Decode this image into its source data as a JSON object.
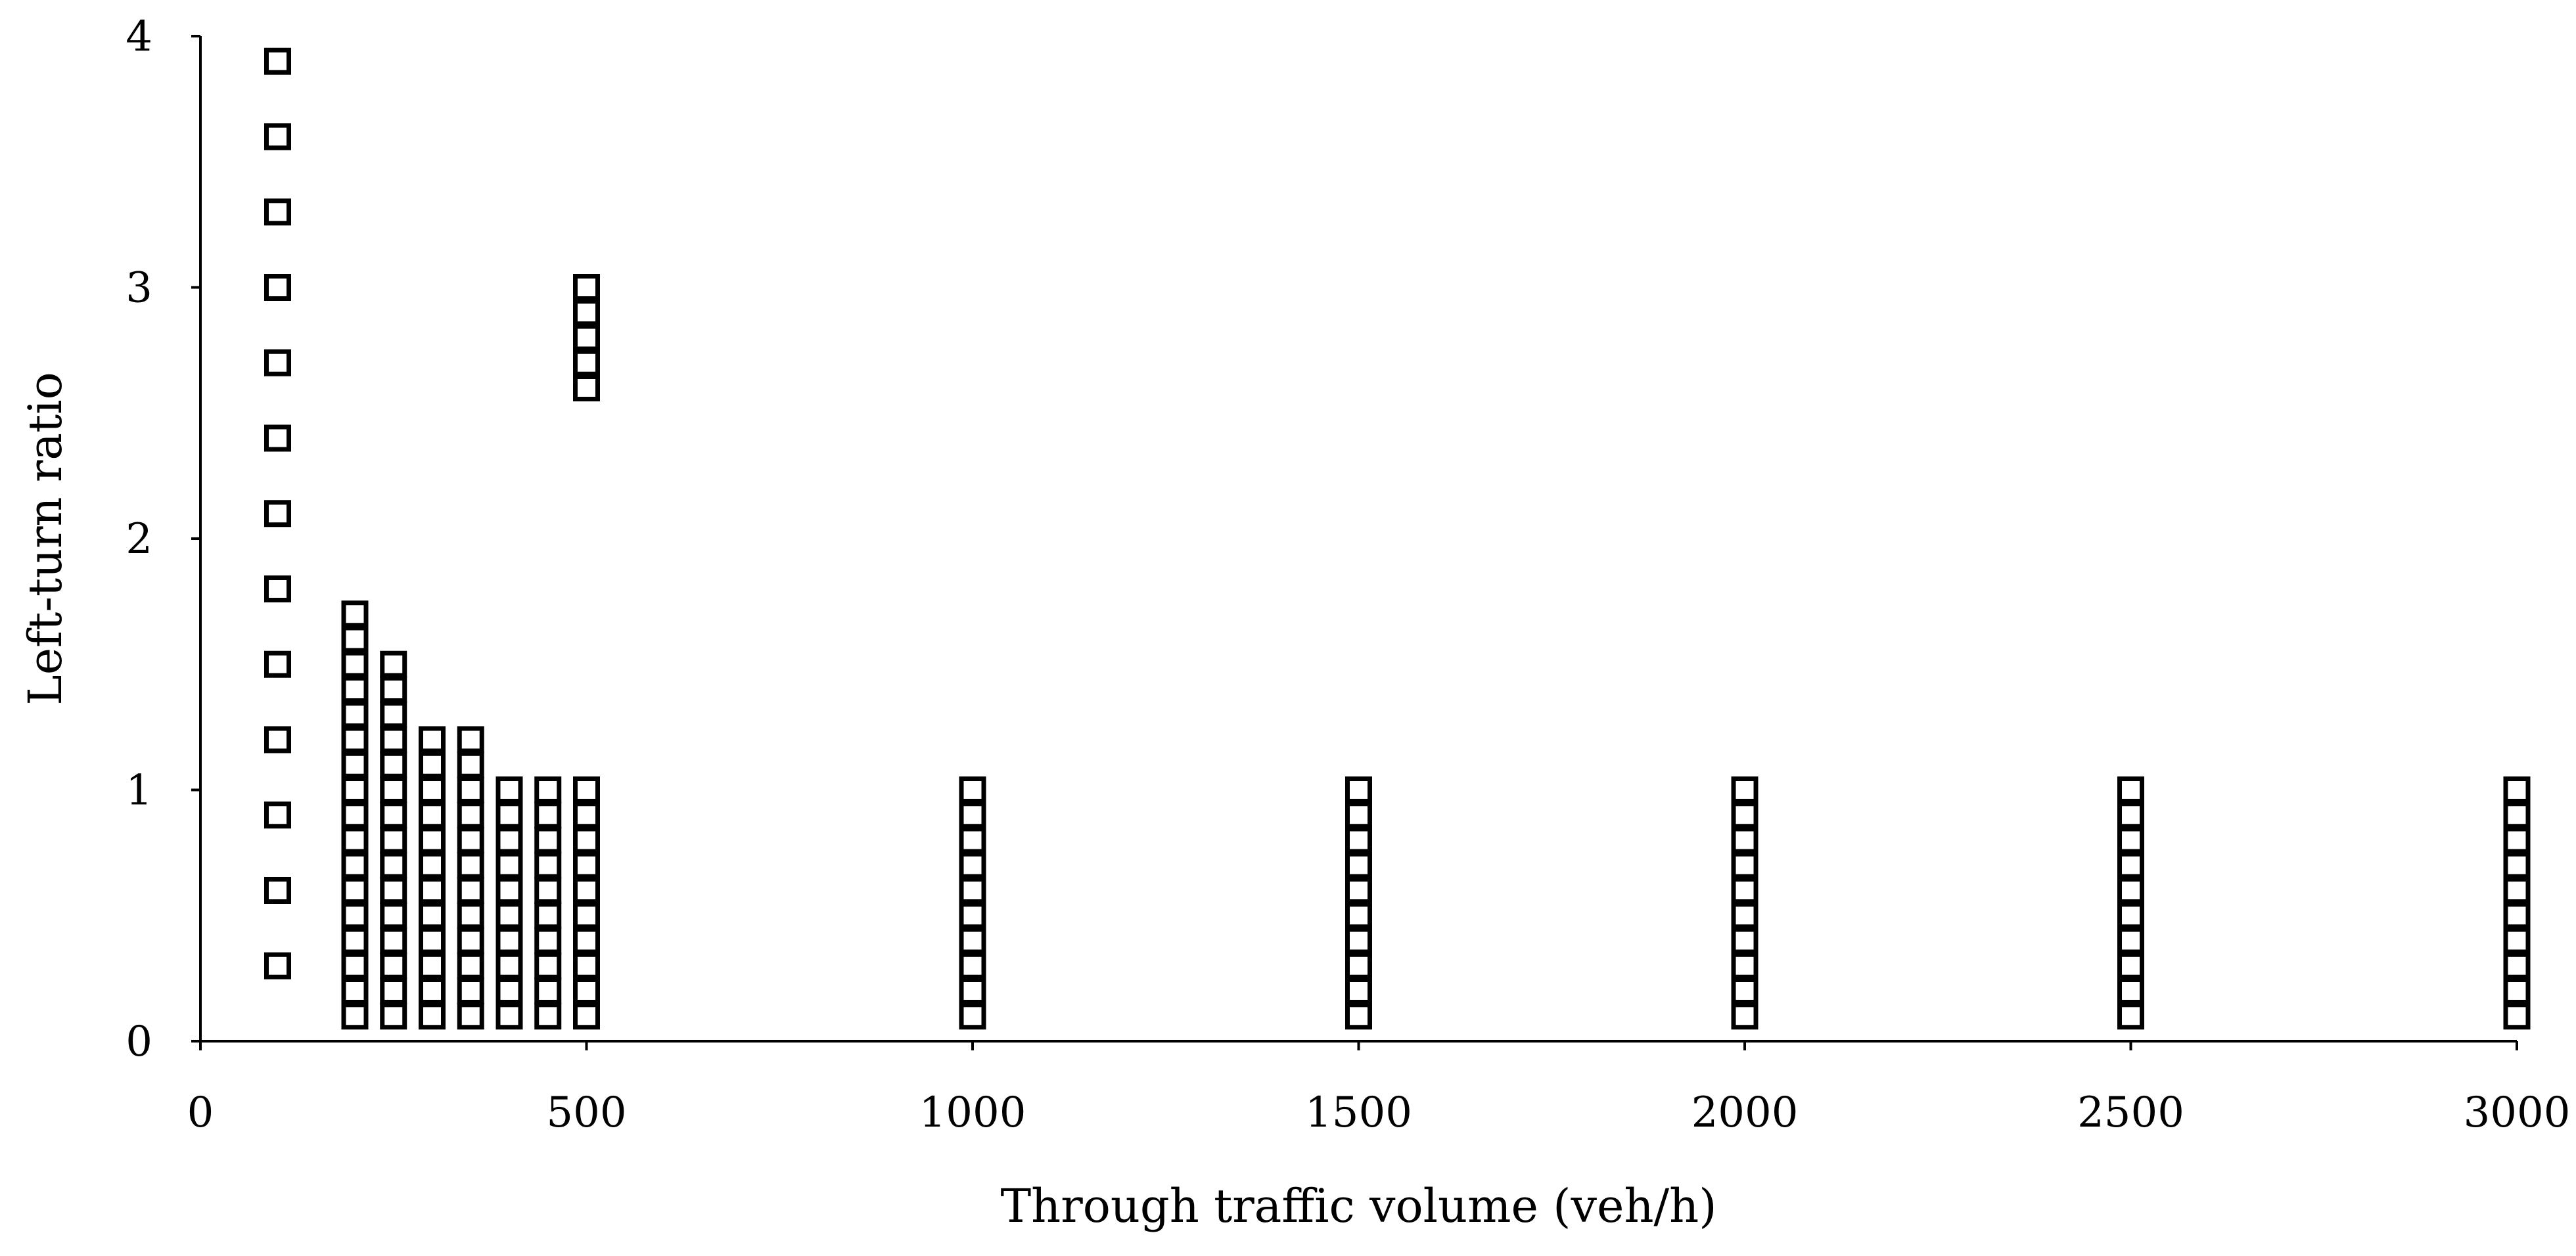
{
  "chart_data": {
    "type": "scatter",
    "title": "",
    "xlabel": "Through traffic volume (veh/h)",
    "ylabel": "Left-turn ratio",
    "xlim": [
      0,
      3000
    ],
    "ylim": [
      0,
      4
    ],
    "xticks": [
      0,
      500,
      1000,
      1500,
      2000,
      2500,
      3000
    ],
    "yticks": [
      0,
      1,
      2,
      3,
      4
    ],
    "x_tick_labels": [
      "0",
      "500",
      "1000",
      "1500",
      "2000",
      "2500",
      "3000"
    ],
    "y_tick_labels": [
      "0",
      "1",
      "2",
      "3",
      "4"
    ],
    "grid": false,
    "legend": false,
    "marker": "open-square",
    "marker_color": "#000000",
    "points": [
      [
        100,
        0.3
      ],
      [
        100,
        0.6
      ],
      [
        100,
        0.9
      ],
      [
        100,
        1.2
      ],
      [
        100,
        1.5
      ],
      [
        100,
        1.8
      ],
      [
        100,
        2.1
      ],
      [
        100,
        2.4
      ],
      [
        100,
        2.7
      ],
      [
        100,
        3.0
      ],
      [
        100,
        3.3
      ],
      [
        100,
        3.6
      ],
      [
        100,
        3.9
      ],
      [
        200,
        0.1
      ],
      [
        200,
        0.2
      ],
      [
        200,
        0.3
      ],
      [
        200,
        0.4
      ],
      [
        200,
        0.5
      ],
      [
        200,
        0.6
      ],
      [
        200,
        0.7
      ],
      [
        200,
        0.8
      ],
      [
        200,
        0.9
      ],
      [
        200,
        1.0
      ],
      [
        200,
        1.1
      ],
      [
        200,
        1.2
      ],
      [
        200,
        1.3
      ],
      [
        200,
        1.4
      ],
      [
        200,
        1.5
      ],
      [
        200,
        1.6
      ],
      [
        200,
        1.7
      ],
      [
        250,
        0.1
      ],
      [
        250,
        0.2
      ],
      [
        250,
        0.3
      ],
      [
        250,
        0.4
      ],
      [
        250,
        0.5
      ],
      [
        250,
        0.6
      ],
      [
        250,
        0.7
      ],
      [
        250,
        0.8
      ],
      [
        250,
        0.9
      ],
      [
        250,
        1.0
      ],
      [
        250,
        1.1
      ],
      [
        250,
        1.2
      ],
      [
        250,
        1.3
      ],
      [
        250,
        1.4
      ],
      [
        250,
        1.5
      ],
      [
        300,
        0.1
      ],
      [
        300,
        0.2
      ],
      [
        300,
        0.3
      ],
      [
        300,
        0.4
      ],
      [
        300,
        0.5
      ],
      [
        300,
        0.6
      ],
      [
        300,
        0.7
      ],
      [
        300,
        0.8
      ],
      [
        300,
        0.9
      ],
      [
        300,
        1.0
      ],
      [
        300,
        1.1
      ],
      [
        300,
        1.2
      ],
      [
        350,
        0.1
      ],
      [
        350,
        0.2
      ],
      [
        350,
        0.3
      ],
      [
        350,
        0.4
      ],
      [
        350,
        0.5
      ],
      [
        350,
        0.6
      ],
      [
        350,
        0.7
      ],
      [
        350,
        0.8
      ],
      [
        350,
        0.9
      ],
      [
        350,
        1.0
      ],
      [
        350,
        1.1
      ],
      [
        350,
        1.2
      ],
      [
        400,
        0.1
      ],
      [
        400,
        0.2
      ],
      [
        400,
        0.3
      ],
      [
        400,
        0.4
      ],
      [
        400,
        0.5
      ],
      [
        400,
        0.6
      ],
      [
        400,
        0.7
      ],
      [
        400,
        0.8
      ],
      [
        400,
        0.9
      ],
      [
        400,
        1.0
      ],
      [
        450,
        0.1
      ],
      [
        450,
        0.2
      ],
      [
        450,
        0.3
      ],
      [
        450,
        0.4
      ],
      [
        450,
        0.5
      ],
      [
        450,
        0.6
      ],
      [
        450,
        0.7
      ],
      [
        450,
        0.8
      ],
      [
        450,
        0.9
      ],
      [
        450,
        1.0
      ],
      [
        500,
        0.1
      ],
      [
        500,
        0.2
      ],
      [
        500,
        0.3
      ],
      [
        500,
        0.4
      ],
      [
        500,
        0.5
      ],
      [
        500,
        0.6
      ],
      [
        500,
        0.7
      ],
      [
        500,
        0.8
      ],
      [
        500,
        0.9
      ],
      [
        500,
        1.0
      ],
      [
        500,
        2.6
      ],
      [
        500,
        2.7
      ],
      [
        500,
        2.8
      ],
      [
        500,
        2.9
      ],
      [
        500,
        3.0
      ],
      [
        1000,
        0.1
      ],
      [
        1000,
        0.2
      ],
      [
        1000,
        0.3
      ],
      [
        1000,
        0.4
      ],
      [
        1000,
        0.5
      ],
      [
        1000,
        0.6
      ],
      [
        1000,
        0.7
      ],
      [
        1000,
        0.8
      ],
      [
        1000,
        0.9
      ],
      [
        1000,
        1.0
      ],
      [
        1500,
        0.1
      ],
      [
        1500,
        0.2
      ],
      [
        1500,
        0.3
      ],
      [
        1500,
        0.4
      ],
      [
        1500,
        0.5
      ],
      [
        1500,
        0.6
      ],
      [
        1500,
        0.7
      ],
      [
        1500,
        0.8
      ],
      [
        1500,
        0.9
      ],
      [
        1500,
        1.0
      ],
      [
        2000,
        0.1
      ],
      [
        2000,
        0.2
      ],
      [
        2000,
        0.3
      ],
      [
        2000,
        0.4
      ],
      [
        2000,
        0.5
      ],
      [
        2000,
        0.6
      ],
      [
        2000,
        0.7
      ],
      [
        2000,
        0.8
      ],
      [
        2000,
        0.9
      ],
      [
        2000,
        1.0
      ],
      [
        2500,
        0.1
      ],
      [
        2500,
        0.2
      ],
      [
        2500,
        0.3
      ],
      [
        2500,
        0.4
      ],
      [
        2500,
        0.5
      ],
      [
        2500,
        0.6
      ],
      [
        2500,
        0.7
      ],
      [
        2500,
        0.8
      ],
      [
        2500,
        0.9
      ],
      [
        2500,
        1.0
      ],
      [
        3000,
        0.1
      ],
      [
        3000,
        0.2
      ],
      [
        3000,
        0.3
      ],
      [
        3000,
        0.4
      ],
      [
        3000,
        0.5
      ],
      [
        3000,
        0.6
      ],
      [
        3000,
        0.7
      ],
      [
        3000,
        0.8
      ],
      [
        3000,
        0.9
      ],
      [
        3000,
        1.0
      ]
    ]
  }
}
